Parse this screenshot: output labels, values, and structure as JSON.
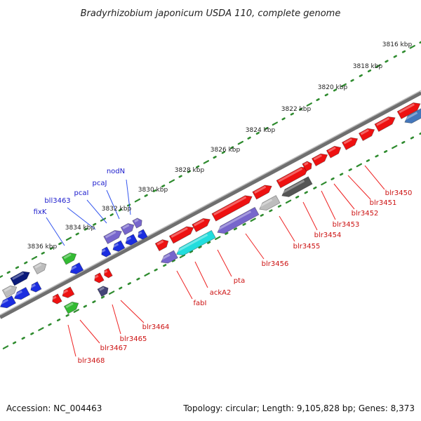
{
  "title": "Bradyrhizobium japonicum USDA 110, complete genome",
  "footer": {
    "accession": "Accession: NC_004463",
    "topology": "Topology: circular; Length: 9,105,828 bp; Genes: 8,373"
  },
  "colors": {
    "backbone": "#8a8a8a",
    "tick": "#2e8b2e",
    "label_upper": "#1a1acc",
    "label_lower": "#cc1111",
    "leader_upper": "#3355ee",
    "leader_lower": "#ee2222"
  },
  "scale": {
    "ticks": [
      {
        "label": "3816 kbp"
      },
      {
        "label": "3818 kbp"
      },
      {
        "label": "3820 kbp"
      },
      {
        "label": "3822 kbp"
      },
      {
        "label": "3824 kbp"
      },
      {
        "label": "3826 kbp"
      },
      {
        "label": "3828 kbp"
      },
      {
        "label": "3830 kbp"
      },
      {
        "label": "3832 kbp"
      },
      {
        "label": "3834 kbp"
      },
      {
        "label": "3836 kbp"
      }
    ]
  },
  "features": [
    {
      "label": "nodN",
      "strand": "upper"
    },
    {
      "label": "pcaJ",
      "strand": "upper"
    },
    {
      "label": "pcaI",
      "strand": "upper"
    },
    {
      "label": "bll3463",
      "strand": "upper"
    },
    {
      "label": "fixK",
      "strand": "upper"
    },
    {
      "label": "blr3450",
      "strand": "lower"
    },
    {
      "label": "blr3451",
      "strand": "lower"
    },
    {
      "label": "blr3452",
      "strand": "lower"
    },
    {
      "label": "blr3453",
      "strand": "lower"
    },
    {
      "label": "blr3454",
      "strand": "lower"
    },
    {
      "label": "blr3455",
      "strand": "lower"
    },
    {
      "label": "blr3456",
      "strand": "lower"
    },
    {
      "label": "pta",
      "strand": "lower"
    },
    {
      "label": "ackA2",
      "strand": "lower"
    },
    {
      "label": "fabI",
      "strand": "lower"
    },
    {
      "label": "blr3464",
      "strand": "lower"
    },
    {
      "label": "blr3465",
      "strand": "lower"
    },
    {
      "label": "blr3467",
      "strand": "lower"
    },
    {
      "label": "blr3468",
      "strand": "lower"
    }
  ]
}
